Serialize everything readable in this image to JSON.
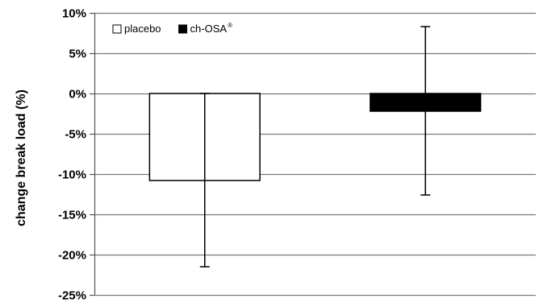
{
  "chart_data": {
    "type": "bar",
    "title": "",
    "xlabel": "",
    "ylabel": "change break load (%)",
    "ylim": [
      -25,
      10
    ],
    "yticks": [
      10,
      5,
      0,
      -5,
      -10,
      -15,
      -20,
      -25
    ],
    "ytick_labels": [
      "10%",
      "5%",
      "0%",
      "-5%",
      "-10%",
      "-15%",
      "-20%",
      "-25%"
    ],
    "grid": true,
    "legend_position": "top-left",
    "categories": [
      "",
      ""
    ],
    "series": [
      {
        "name": "placebo",
        "name_superscript": "",
        "value": -10.8,
        "error_low": -21.5,
        "error_high": 0,
        "fill": "#ffffff",
        "stroke": "#000000"
      },
      {
        "name": "ch-OSA",
        "name_superscript": "®",
        "value": -2.2,
        "error_low": -12.6,
        "error_high": 8.3,
        "fill": "#000000",
        "stroke": "#000000"
      }
    ]
  }
}
